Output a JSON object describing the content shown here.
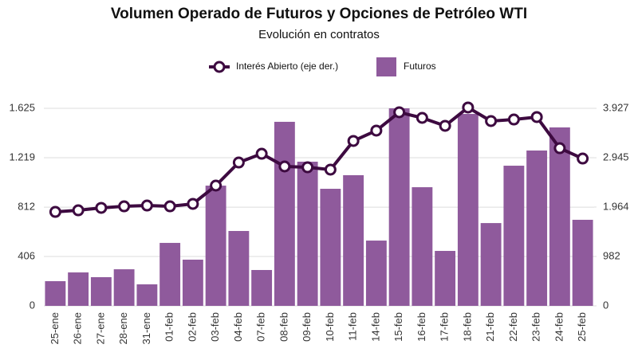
{
  "chart_data": {
    "type": "bar-line",
    "title": "Volumen Operado de Futuros y Opciones de Petróleo WTI",
    "subtitle": "Evolución en contratos",
    "categories": [
      "25-ene",
      "26-ene",
      "27-ene",
      "28-ene",
      "31-ene",
      "01-feb",
      "02-feb",
      "03-feb",
      "04-feb",
      "07-feb",
      "08-feb",
      "09-feb",
      "10-feb",
      "11-feb",
      "14-feb",
      "15-feb",
      "16-feb",
      "17-feb",
      "18-feb",
      "21-feb",
      "22-feb",
      "23-feb",
      "24-feb",
      "25-feb"
    ],
    "series": [
      {
        "name": "Interés Abierto (eje der.)",
        "type": "line",
        "axis": "y2",
        "color": "#3d0a40",
        "values": [
          1868,
          1900,
          1948,
          1979,
          1995,
          1979,
          2027,
          2391,
          2850,
          3024,
          2771,
          2755,
          2708,
          3278,
          3484,
          3848,
          3737,
          3579,
          3943,
          3674,
          3705,
          3753,
          3135,
          2929
        ]
      },
      {
        "name": "Futuros",
        "type": "bar",
        "color": "#8f5a9c",
        "values": [
          203,
          275,
          236,
          301,
          177,
          518,
          380,
          989,
          616,
          295,
          1514,
          1186,
          963,
          1075,
          537,
          1625,
          976,
          452,
          1579,
          681,
          1153,
          1278,
          1468,
          708
        ]
      }
    ],
    "ylim": [
      0,
      1625
    ],
    "yticks": [
      0,
      406,
      812,
      {
        "value": 1219,
        "label": "1.219"
      },
      {
        "value": 1625,
        "label": "1.625"
      }
    ],
    "y2lim": [
      0,
      3927
    ],
    "y2ticks": [
      0,
      982,
      {
        "value": 1964,
        "label": "1.964"
      },
      {
        "value": 2945,
        "label": "2.945"
      },
      {
        "value": 3927,
        "label": "3.927"
      }
    ],
    "grid": true,
    "legend": "top"
  }
}
